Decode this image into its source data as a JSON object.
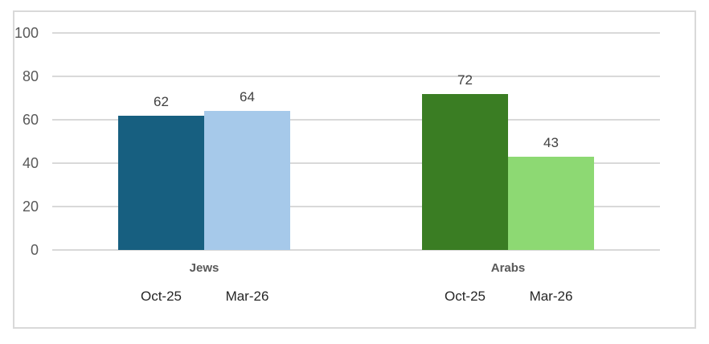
{
  "chart_data": {
    "type": "bar",
    "title": "",
    "xlabel": "",
    "ylabel": "",
    "ylim": [
      0,
      100
    ],
    "yticks": [
      0,
      20,
      40,
      60,
      80,
      100
    ],
    "grid": "horizontal",
    "legend": "none",
    "categories": [
      "Jews",
      "Arabs"
    ],
    "series_labels": [
      "Oct-25",
      "Mar-26"
    ],
    "groups": [
      {
        "label": "Jews",
        "bars": [
          {
            "series": "Oct-25",
            "value": 62,
            "color": "#175F80"
          },
          {
            "series": "Mar-26",
            "value": 64,
            "color": "#A6C9EA"
          }
        ]
      },
      {
        "label": "Arabs",
        "bars": [
          {
            "series": "Oct-25",
            "value": 72,
            "color": "#3A7D23"
          },
          {
            "series": "Mar-26",
            "value": 43,
            "color": "#8DD973"
          }
        ]
      }
    ],
    "colors": {
      "background": "#FFFFFF",
      "frame_border": "#D9D9D9",
      "gridline": "#D9D9D9",
      "tick_label": "#595959",
      "data_label": "#404040",
      "group_label": "#595959",
      "series_label": "#262626"
    }
  }
}
